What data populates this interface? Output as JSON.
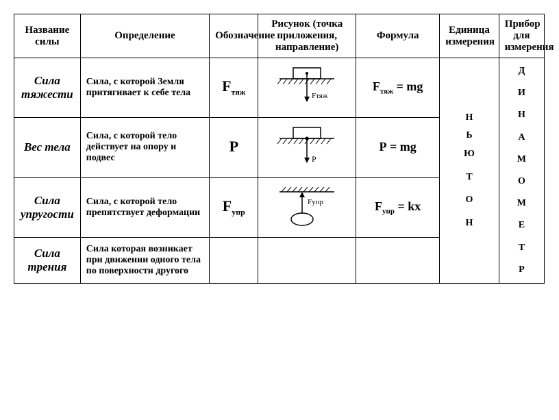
{
  "headers": {
    "name": "Название силы",
    "definition": "Определение",
    "symbol": "Обозначение",
    "figure": "Рисунок (точка приложения, направление)",
    "formula": "Формула",
    "unit": "Единица измерения",
    "device": "Прибор для измерения"
  },
  "rows": [
    {
      "name": "Сила тяжести",
      "definition": "Сила, с которой Земля притягивает к себе тела",
      "symbol_main": "F",
      "symbol_sub": "тяж",
      "formula_lhs_main": "F",
      "formula_lhs_sub": "тяж",
      "formula_rhs": " = mg",
      "figure_label": "Fтяж"
    },
    {
      "name": "Вес тела",
      "definition": "Сила, с которой тело действует на опору и подвес",
      "symbol_main": "P",
      "symbol_sub": "",
      "formula_lhs_main": "P",
      "formula_lhs_sub": "",
      "formula_rhs": " = mg",
      "figure_label": "P"
    },
    {
      "name": "Сила упругости",
      "definition": "Сила, с которой тело препятствует деформации",
      "symbol_main": "F",
      "symbol_sub": "упр",
      "formula_lhs_main": "F",
      "formula_lhs_sub": "упр",
      "formula_rhs": " = kx",
      "figure_label": "Fупр"
    },
    {
      "name": "Сила трения",
      "definition": "Сила которая возникает при движении одного тела по поверхности другого",
      "symbol_main": "",
      "symbol_sub": "",
      "formula_lhs_main": "",
      "formula_lhs_sub": "",
      "formula_rhs": "",
      "figure_label": ""
    }
  ],
  "unit_vertical": [
    "Н",
    "Ь",
    "Ю",
    "",
    "Т",
    "",
    "О",
    "",
    "Н"
  ],
  "device_vertical": [
    "Д",
    "",
    "И",
    "",
    "Н",
    "",
    "А",
    "",
    "М",
    "",
    "О",
    "",
    "М",
    "",
    "Е",
    "",
    "Т",
    "",
    "Р"
  ],
  "colors": {
    "border": "#000000",
    "background": "#ffffff",
    "text": "#000000"
  }
}
